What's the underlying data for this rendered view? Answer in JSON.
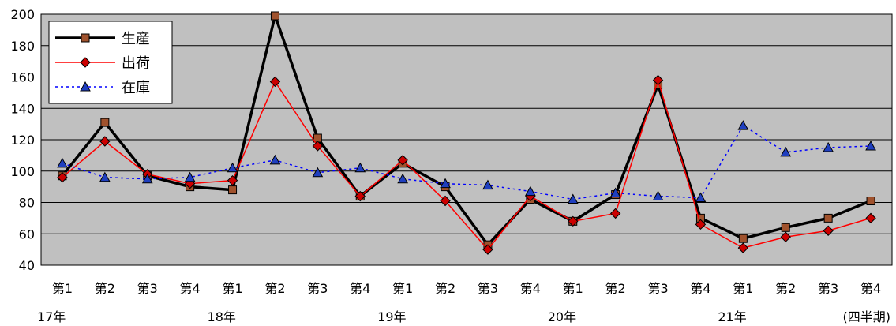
{
  "chart_data": {
    "type": "line",
    "title": "",
    "xlabel": "",
    "ylabel": "",
    "ylim": [
      40,
      200
    ],
    "yticks": [
      40,
      60,
      80,
      100,
      120,
      140,
      160,
      180,
      200
    ],
    "grid": true,
    "legend_position": "top-left",
    "categories": [
      "第1",
      "第2",
      "第3",
      "第4",
      "第1",
      "第2",
      "第3",
      "第4",
      "第1",
      "第2",
      "第3",
      "第4",
      "第1",
      "第2",
      "第3",
      "第4",
      "第1",
      "第2",
      "第3",
      "第4"
    ],
    "year_labels": [
      {
        "label": "17年",
        "index": 0
      },
      {
        "label": "18年",
        "index": 4
      },
      {
        "label": "19年",
        "index": 8
      },
      {
        "label": "20年",
        "index": 12
      },
      {
        "label": "21年",
        "index": 16
      }
    ],
    "unit_label": "(四半期)",
    "colors": {
      "plot_background": "#c0c0c0",
      "production_line": "#000000",
      "production_marker": "#a0522d",
      "shipment": "#ff0000",
      "shipment_marker": "#cc0000",
      "inventory_line": "#0000ff",
      "inventory_marker": "#1f3fbf"
    },
    "series": [
      {
        "name": "生産",
        "style": "solid-thick",
        "marker": "square",
        "values": [
          97,
          131,
          97,
          90,
          88,
          199,
          121,
          84,
          105,
          90,
          53,
          82,
          68,
          85,
          155,
          70,
          57,
          64,
          70,
          81
        ]
      },
      {
        "name": "出荷",
        "style": "solid-thin",
        "marker": "diamond",
        "values": [
          96,
          119,
          98,
          92,
          94,
          157,
          116,
          84,
          107,
          81,
          50,
          84,
          68,
          73,
          158,
          66,
          51,
          58,
          62,
          70
        ]
      },
      {
        "name": "在庫",
        "style": "dotted",
        "marker": "triangle",
        "values": [
          105,
          96,
          95,
          96,
          102,
          107,
          99,
          102,
          95,
          92,
          91,
          87,
          82,
          86,
          84,
          83,
          129,
          112,
          115,
          116
        ]
      }
    ]
  }
}
